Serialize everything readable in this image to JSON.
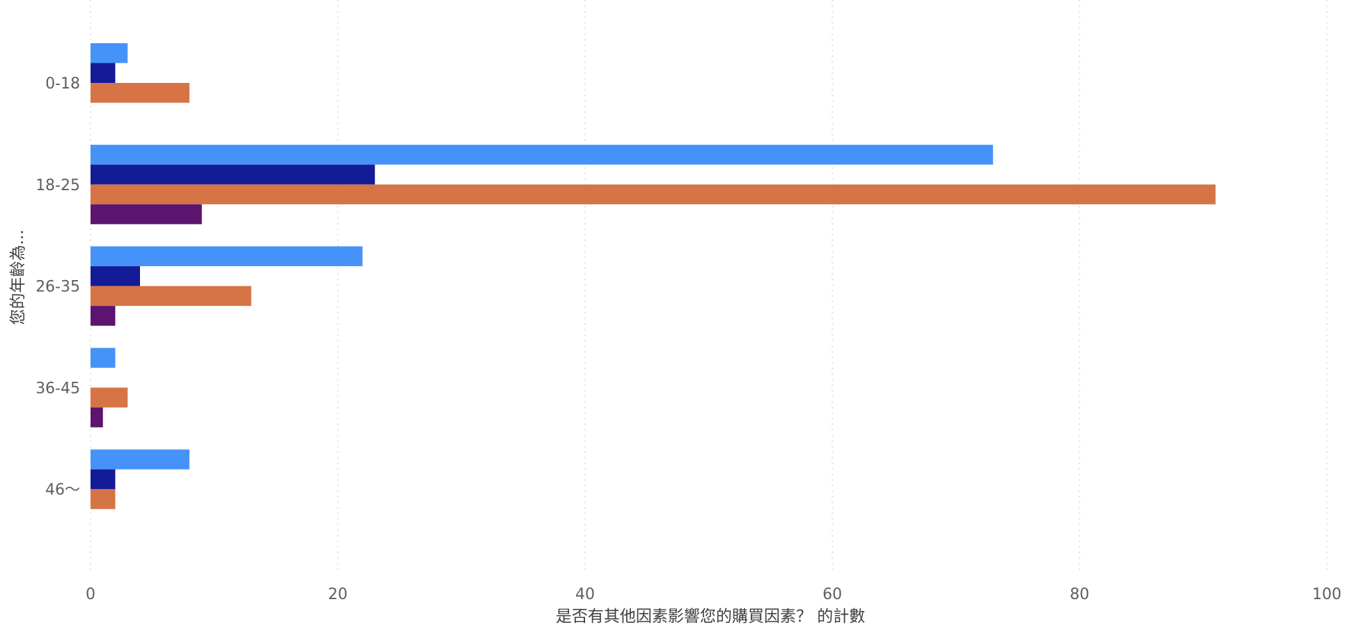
{
  "chart_data": {
    "type": "bar",
    "orientation": "horizontal",
    "title": "",
    "xlabel": "是否有其他因素影響您的購買因素？ 的計數",
    "ylabel": "您的年齡為...",
    "xlim": [
      0,
      100
    ],
    "x_ticks": [
      0,
      20,
      40,
      60,
      80,
      100
    ],
    "grid": "vertical dotted",
    "legend": "none",
    "categories": [
      "0-18",
      "18-25",
      "26-35",
      "36-45",
      "46～"
    ],
    "series": [
      {
        "color": "#4593f9",
        "values": [
          3,
          73,
          22,
          2,
          8
        ]
      },
      {
        "color": "#141b97",
        "values": [
          2,
          23,
          4,
          0,
          2
        ]
      },
      {
        "color": "#d67445",
        "values": [
          8,
          91,
          13,
          3,
          2
        ]
      },
      {
        "color": "#5c146f",
        "values": [
          0,
          9,
          2,
          1,
          0
        ]
      }
    ]
  }
}
